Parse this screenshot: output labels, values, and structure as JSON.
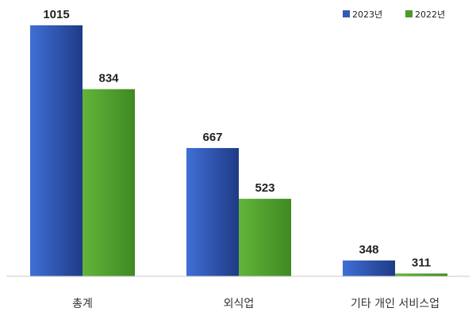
{
  "chart_data": {
    "type": "bar",
    "categories": [
      "총계",
      "외식업",
      "기타 개인 서비스업"
    ],
    "series": [
      {
        "name": "2023년",
        "values": [
          1015,
          667,
          348
        ],
        "color": "#3558b8"
      },
      {
        "name": "2022년",
        "values": [
          834,
          523,
          311
        ],
        "color": "#4c9a2a"
      }
    ],
    "ylim": [
      300,
      1015
    ],
    "legend_position": "top-right",
    "grid": false,
    "data_labels": true
  }
}
